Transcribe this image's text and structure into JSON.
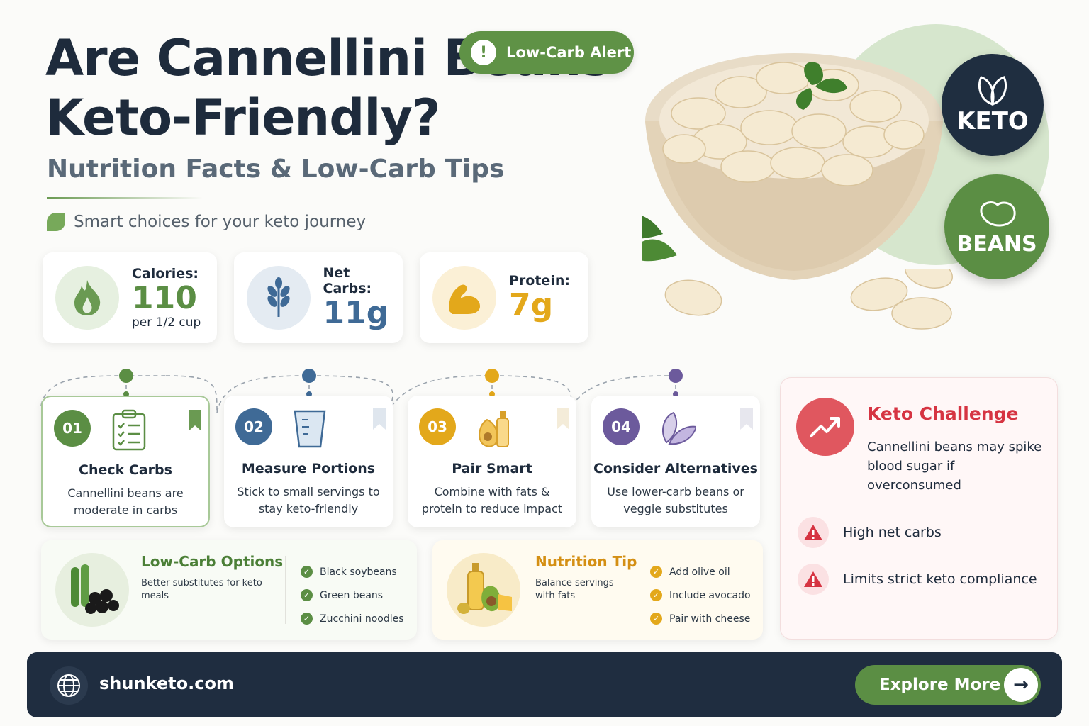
{
  "header": {
    "title": "Are Cannellini Beans Keto-Friendly?",
    "subtitle": "Nutrition Facts & Low-Carb Tips",
    "tagline": "Smart choices for your keto journey",
    "alert_label": "Low-Carb Alert"
  },
  "badges": {
    "keto": "KETO",
    "beans": "BEANS"
  },
  "stats": [
    {
      "label": "Calories:",
      "value": "110",
      "sub": "per 1/2 cup",
      "color": "#5b8e44",
      "icon": "flame-icon"
    },
    {
      "label": "Net Carbs:",
      "value": "11g",
      "sub": "",
      "color": "#3f6a96",
      "icon": "wheat-icon"
    },
    {
      "label": "Protein:",
      "value": "7g",
      "sub": "",
      "color": "#e3a81b",
      "icon": "muscle-icon"
    }
  ],
  "steps": [
    {
      "num": "01",
      "title": "Check Carbs",
      "desc": "Cannellini beans are moderate in carbs",
      "color": "#5b8e44",
      "icon": "clipboard-icon"
    },
    {
      "num": "02",
      "title": "Measure Portions",
      "desc": "Stick to small servings to stay keto-friendly",
      "color": "#3f6a96",
      "icon": "measuring-cup-icon"
    },
    {
      "num": "03",
      "title": "Pair Smart",
      "desc": "Combine with fats & protein to reduce impact",
      "color": "#e3a81b",
      "icon": "avocado-oil-icon"
    },
    {
      "num": "04",
      "title": "Consider Alternatives",
      "desc": "Use lower-carb beans or veggie substitutes",
      "color": "#6c5a9c",
      "icon": "leaves-icon"
    }
  ],
  "low_carb": {
    "title": "Low-Carb Options",
    "subtitle": "Better substitutes for keto meals",
    "items": [
      "Black soybeans",
      "Green beans",
      "Zucchini noodles"
    ]
  },
  "nutrition_tip": {
    "title": "Nutrition Tip",
    "subtitle": "Balance servings with fats",
    "items": [
      "Add olive oil",
      "Include avocado",
      "Pair with cheese"
    ]
  },
  "challenge": {
    "title": "Keto Challenge",
    "desc": "Cannellini beans may spike blood sugar if overconsumed",
    "items": [
      "High net carbs",
      "Limits strict keto compliance"
    ]
  },
  "footer": {
    "site": "shunketo.com",
    "cta": "Explore More"
  }
}
